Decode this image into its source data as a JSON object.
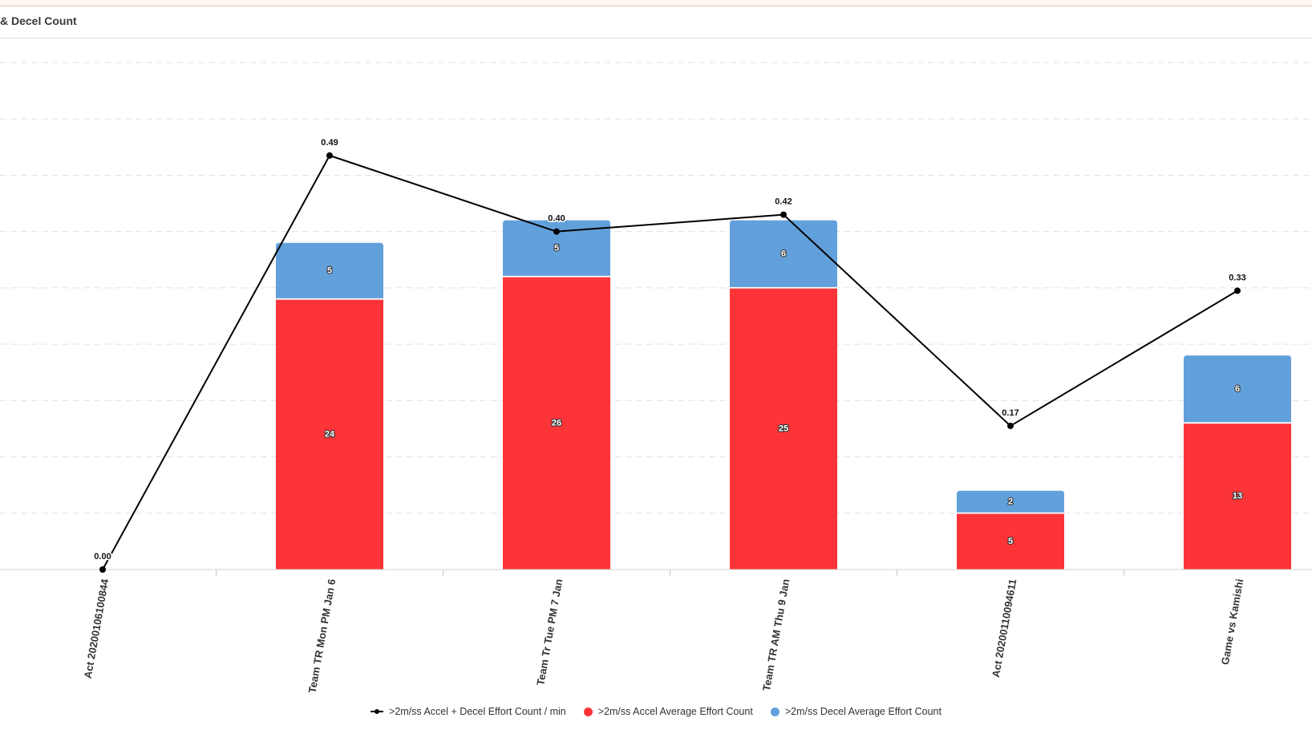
{
  "panel": {
    "title": "& Decel Count"
  },
  "colors": {
    "accel": "#fc3437",
    "decel": "#62a0dc",
    "line": "#000000",
    "grid": "#e2e2e2"
  },
  "chart_data": {
    "type": "bar",
    "stacked": true,
    "categories": [
      "Act 20200106100844",
      "Team TR Mon PM Jan 6",
      "Team Tr Tue PM 7 Jan",
      "Team TR AM Thu 9 Jan",
      "Act 20200110094611",
      "Game vs Kamishi"
    ],
    "series": [
      {
        "name": ">2m/ss Accel Average Effort Count",
        "type": "bar",
        "color": "#fc3437",
        "values": [
          0,
          24,
          26,
          25,
          5,
          13
        ],
        "labels": [
          "",
          "24",
          "26",
          "25",
          "5",
          "13"
        ]
      },
      {
        "name": ">2m/ss Decel Average Effort Count",
        "type": "bar",
        "color": "#62a0dc",
        "values": [
          0,
          5,
          5,
          6,
          2,
          6
        ],
        "labels": [
          "",
          "5",
          "5",
          "6",
          "2",
          "6"
        ]
      },
      {
        "name": ">2m/ss Accel + Decel Effort Count / min",
        "type": "line",
        "color": "#000000",
        "axis": "secondary",
        "values": [
          0.0,
          0.49,
          0.4,
          0.42,
          0.17,
          0.33
        ],
        "labels": [
          "0.00",
          "0.49",
          "0.40",
          "0.42",
          "0.17",
          "0.33"
        ]
      }
    ],
    "ylim": [
      0,
      45
    ],
    "y2lim": [
      0,
      0.6
    ],
    "grid": true,
    "legend_position": "bottom"
  },
  "legend": {
    "line_label": ">2m/ss Accel + Decel Effort Count / min",
    "accel_label": ">2m/ss Accel Average Effort Count",
    "decel_label": ">2m/ss Decel Average Effort Count"
  }
}
